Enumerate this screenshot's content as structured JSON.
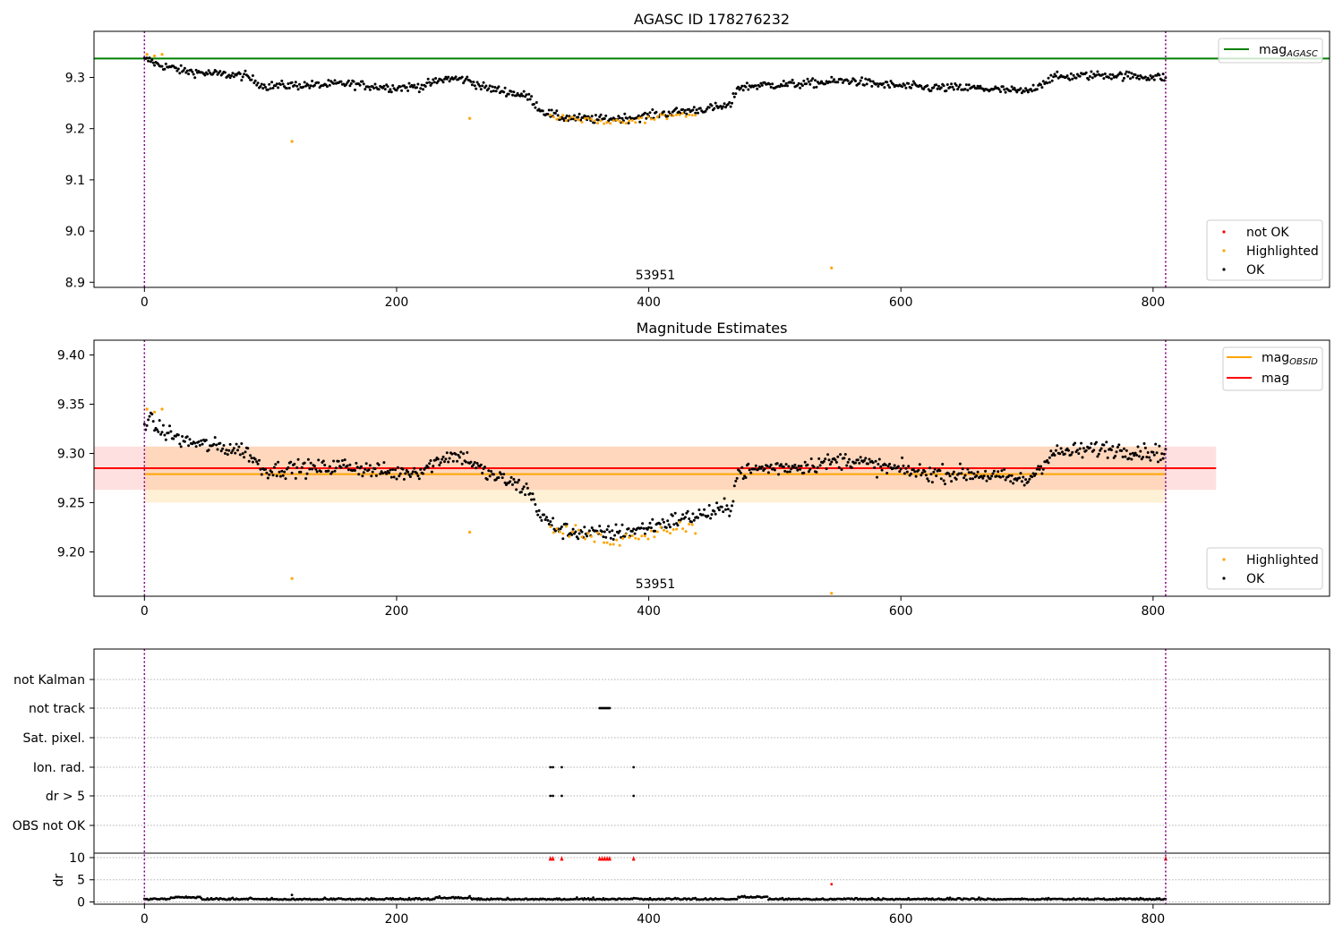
{
  "colors": {
    "ok": "#000000",
    "highlighted": "#ffa500",
    "not_ok": "#ff0000",
    "agasc_line": "#008000",
    "mag_line": "#ff0000",
    "obsid_line": "#ffa500",
    "obs_limits": "#800080"
  },
  "chart_data": [
    {
      "type": "scatter",
      "title": "AGASC ID 178276232",
      "xlim": [
        -40,
        940
      ],
      "ylim": [
        8.89,
        9.39
      ],
      "xticks": [
        "0",
        "200",
        "400",
        "600",
        "800"
      ],
      "yticks": [
        "8.9",
        "9.0",
        "9.1",
        "9.2",
        "9.3"
      ],
      "obsid_label": "53951",
      "obs_bounds": [
        0,
        810
      ],
      "lines": [
        {
          "name": "mag",
          "sub": "AGASC",
          "y": 9.337,
          "x": [
            -40,
            940
          ],
          "color": "#008000"
        }
      ],
      "legend_lines": [
        {
          "name": "mag",
          "sub": "AGASC",
          "color": "#008000"
        }
      ],
      "legend_points": [
        "not OK",
        "Highlighted",
        "OK"
      ],
      "series": [
        {
          "name": "OK",
          "color": "#000000",
          "trend": [
            [
              0,
              9.334
            ],
            [
              5,
              9.333
            ],
            [
              10,
              9.325
            ],
            [
              20,
              9.32
            ],
            [
              30,
              9.313
            ],
            [
              50,
              9.308
            ],
            [
              80,
              9.303
            ],
            [
              95,
              9.283
            ],
            [
              120,
              9.285
            ],
            [
              140,
              9.285
            ],
            [
              160,
              9.288
            ],
            [
              180,
              9.283
            ],
            [
              200,
              9.28
            ],
            [
              220,
              9.283
            ],
            [
              240,
              9.298
            ],
            [
              255,
              9.296
            ],
            [
              270,
              9.28
            ],
            [
              290,
              9.271
            ],
            [
              305,
              9.262
            ],
            [
              315,
              9.235
            ],
            [
              330,
              9.222
            ],
            [
              360,
              9.218
            ],
            [
              390,
              9.222
            ],
            [
              420,
              9.232
            ],
            [
              450,
              9.24
            ],
            [
              465,
              9.245
            ],
            [
              470,
              9.28
            ],
            [
              490,
              9.285
            ],
            [
              520,
              9.287
            ],
            [
              560,
              9.294
            ],
            [
              580,
              9.287
            ],
            [
              620,
              9.28
            ],
            [
              660,
              9.279
            ],
            [
              700,
              9.272
            ],
            [
              720,
              9.3
            ],
            [
              760,
              9.305
            ],
            [
              810,
              9.3
            ]
          ],
          "noise": 0.008,
          "step": 1
        },
        {
          "name": "Highlighted",
          "color": "#ffa500",
          "trend": [
            [
              322,
              9.222
            ],
            [
              340,
              9.22
            ],
            [
              360,
              9.213
            ],
            [
              380,
              9.213
            ],
            [
              400,
              9.22
            ],
            [
              420,
              9.225
            ],
            [
              438,
              9.225
            ]
          ],
          "noise": 0.007,
          "step": 2.5
        },
        {
          "name": "Highlighted",
          "color": "#ffa500",
          "points": [
            [
              2,
              9.345
            ],
            [
              8,
              9.342
            ],
            [
              14,
              9.345
            ],
            [
              117,
              9.175
            ],
            [
              258,
              9.22
            ],
            [
              545,
              8.928
            ]
          ]
        }
      ]
    },
    {
      "type": "scatter",
      "title": "Magnitude Estimates",
      "xlim": [
        -40,
        940
      ],
      "ylim": [
        9.155,
        9.415
      ],
      "xticks": [
        "0",
        "200",
        "400",
        "600",
        "800"
      ],
      "yticks": [
        "9.20",
        "9.25",
        "9.30",
        "9.35",
        "9.40"
      ],
      "obsid_label": "53951",
      "obs_bounds": [
        0,
        810
      ],
      "bands": [
        {
          "x": [
            -40,
            850
          ],
          "y": [
            9.263,
            9.307
          ],
          "color": "#ff0000",
          "opacity": 0.12
        },
        {
          "x": [
            0,
            810
          ],
          "y": [
            9.25,
            9.307
          ],
          "color": "#ffa500",
          "opacity": 0.16
        }
      ],
      "lines": [
        {
          "name": "mag",
          "sub": "OBSID",
          "y": 9.279,
          "x": [
            0,
            810
          ],
          "color": "#ffa500"
        },
        {
          "name": "mag",
          "sub": "",
          "y": 9.285,
          "x": [
            -40,
            850
          ],
          "color": "#ff0000"
        }
      ],
      "legend_lines": [
        {
          "name": "mag",
          "sub": "OBSID",
          "color": "#ffa500"
        },
        {
          "name": "mag",
          "sub": "",
          "color": "#ff0000"
        }
      ],
      "legend_points": [
        "Highlighted",
        "OK"
      ],
      "series": [
        {
          "name": "OK",
          "color": "#000000",
          "trend": [
            [
              0,
              9.334
            ],
            [
              5,
              9.333
            ],
            [
              10,
              9.325
            ],
            [
              20,
              9.32
            ],
            [
              30,
              9.313
            ],
            [
              50,
              9.308
            ],
            [
              80,
              9.303
            ],
            [
              95,
              9.283
            ],
            [
              120,
              9.285
            ],
            [
              140,
              9.285
            ],
            [
              160,
              9.288
            ],
            [
              180,
              9.283
            ],
            [
              200,
              9.28
            ],
            [
              220,
              9.283
            ],
            [
              240,
              9.298
            ],
            [
              255,
              9.296
            ],
            [
              270,
              9.28
            ],
            [
              290,
              9.271
            ],
            [
              305,
              9.262
            ],
            [
              315,
              9.235
            ],
            [
              330,
              9.222
            ],
            [
              360,
              9.218
            ],
            [
              390,
              9.222
            ],
            [
              420,
              9.232
            ],
            [
              450,
              9.24
            ],
            [
              465,
              9.245
            ],
            [
              470,
              9.28
            ],
            [
              490,
              9.285
            ],
            [
              520,
              9.287
            ],
            [
              560,
              9.294
            ],
            [
              580,
              9.287
            ],
            [
              620,
              9.28
            ],
            [
              660,
              9.279
            ],
            [
              700,
              9.272
            ],
            [
              720,
              9.3
            ],
            [
              760,
              9.305
            ],
            [
              810,
              9.3
            ]
          ],
          "noise": 0.008,
          "step": 1
        },
        {
          "name": "Highlighted",
          "color": "#ffa500",
          "trend": [
            [
              322,
              9.222
            ],
            [
              340,
              9.22
            ],
            [
              360,
              9.213
            ],
            [
              380,
              9.213
            ],
            [
              400,
              9.22
            ],
            [
              420,
              9.225
            ],
            [
              438,
              9.225
            ]
          ],
          "noise": 0.007,
          "step": 2.5
        },
        {
          "name": "Highlighted",
          "color": "#ffa500",
          "points": [
            [
              2,
              9.345
            ],
            [
              8,
              9.342
            ],
            [
              14,
              9.345
            ],
            [
              117,
              9.173
            ],
            [
              258,
              9.22
            ],
            [
              545,
              9.158
            ]
          ]
        }
      ]
    },
    {
      "type": "scatter",
      "title": "",
      "xlim": [
        -40,
        940
      ],
      "flag_rows": [
        "not Kalman",
        "not track",
        "Sat. pixel.",
        "Ion. rad.",
        "dr > 5",
        "OBS not OK"
      ],
      "flag_points": [
        {
          "row": "not track",
          "x": [
            361,
            362,
            363,
            364,
            365,
            366,
            367,
            368,
            369
          ]
        },
        {
          "row": "Ion. rad.",
          "x": [
            322,
            324,
            331,
            388
          ]
        },
        {
          "row": "dr > 5",
          "x": [
            322,
            324,
            331,
            388
          ]
        }
      ],
      "dr_ylim": [
        -0.5,
        11
      ],
      "dr_ylabel": "dr",
      "dr_yticks": [
        "0",
        "5",
        "10"
      ],
      "dr_points": {
        "base": 0.5,
        "noise": 0.35,
        "step": 1
      },
      "dr_extra": [
        [
          117,
          1.6
        ],
        [
          545,
          4.0
        ]
      ],
      "dr_clipped": [
        322,
        324,
        331,
        361,
        363,
        365,
        367,
        369,
        388,
        810
      ],
      "xticks": [
        "0",
        "200",
        "400",
        "600",
        "800"
      ],
      "obs_bounds": [
        0,
        810
      ]
    }
  ]
}
